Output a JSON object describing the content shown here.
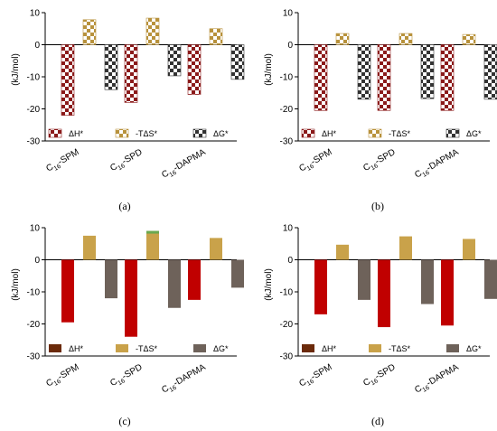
{
  "figure": {
    "colors": {
      "h_pattern": "#8b1a1a",
      "ts_pattern": "#b8923c",
      "g_pattern": "#333333",
      "h_solid": "#c00000",
      "ts_solid": "#c9a24a",
      "g_solid": "#6e625a",
      "ts_solid_green": "#6aa84f",
      "h_legend_solid": "#6b2a0a"
    }
  },
  "chart_data": [
    {
      "type": "bar",
      "panel_label": "(a)",
      "style": "checkered",
      "categories": [
        "C16-SPM",
        "C16-SPD",
        "C16-DAPMA"
      ],
      "ylabel": "(kJ/mol)",
      "ylim": [
        -30,
        10
      ],
      "yticks": [
        "-30",
        "-20",
        "-10",
        "0",
        "10"
      ],
      "legend_position": "bottom",
      "series": [
        {
          "name": "ΔH*",
          "values": [
            -22.0,
            -18.0,
            -15.5
          ]
        },
        {
          "name": "-TΔS*",
          "values": [
            7.8,
            8.3,
            5.0
          ]
        },
        {
          "name": "ΔG*",
          "values": [
            -14.0,
            -9.7,
            -10.8
          ]
        }
      ]
    },
    {
      "type": "bar",
      "panel_label": "(b)",
      "style": "checkered",
      "categories": [
        "C16-SPM",
        "C16-SPD",
        "C16-DAPMA"
      ],
      "ylabel": "(kJ/mol)",
      "ylim": [
        -30,
        10
      ],
      "yticks": [
        "-30",
        "-20",
        "-10",
        "0",
        "10"
      ],
      "legend_position": "bottom",
      "series": [
        {
          "name": "ΔH*",
          "values": [
            -20.5,
            -20.5,
            -20.5
          ]
        },
        {
          "name": "-TΔS*",
          "values": [
            3.5,
            3.5,
            3.2
          ]
        },
        {
          "name": "ΔG*",
          "values": [
            -17.0,
            -16.8,
            -17.0
          ]
        }
      ]
    },
    {
      "type": "bar",
      "panel_label": "(c)",
      "style": "solid",
      "categories": [
        "C16-SPM",
        "C16-SPD",
        "C16-DAPMA"
      ],
      "ylabel": "(kJ/mol)",
      "ylim": [
        -30,
        10
      ],
      "yticks": [
        "-30",
        "-20",
        "-10",
        "0",
        "10"
      ],
      "legend_position": "bottom",
      "series": [
        {
          "name": "ΔH*",
          "values": [
            -19.5,
            -24.0,
            -12.5
          ]
        },
        {
          "name": "-TΔS*",
          "values": [
            7.5,
            9.0,
            6.8
          ]
        },
        {
          "name": "ΔG*",
          "values": [
            -12.0,
            -15.0,
            -8.7
          ]
        }
      ]
    },
    {
      "type": "bar",
      "panel_label": "(d)",
      "style": "solid",
      "categories": [
        "C16-SPM",
        "C16-SPD",
        "C16-DAPMA"
      ],
      "ylabel": "(kJ/mol)",
      "ylim": [
        -30,
        10
      ],
      "yticks": [
        "-30",
        "-20",
        "-10",
        "0",
        "10"
      ],
      "legend_position": "bottom",
      "series": [
        {
          "name": "ΔH*",
          "values": [
            -17.0,
            -21.0,
            -20.5
          ]
        },
        {
          "name": "-TΔS*",
          "values": [
            4.7,
            7.3,
            6.5
          ]
        },
        {
          "name": "ΔG*",
          "values": [
            -12.5,
            -13.8,
            -12.2
          ]
        }
      ]
    }
  ]
}
